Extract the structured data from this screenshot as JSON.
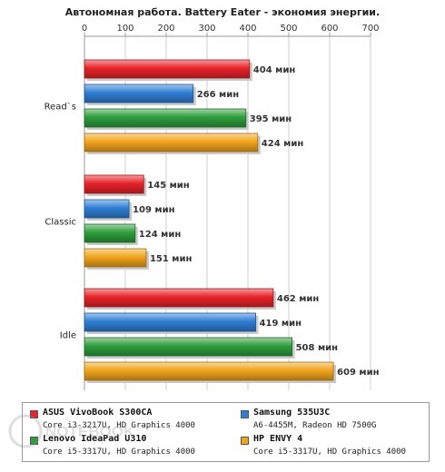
{
  "chart_data": {
    "type": "bar",
    "orientation": "horizontal",
    "title": "Автономная работа. Battery Eater - экономия энергии.",
    "xlim": [
      0,
      700
    ],
    "ticks": [
      0,
      100,
      200,
      300,
      400,
      500,
      600,
      700
    ],
    "tick_labels": [
      "0",
      "100",
      "200",
      "300",
      "400",
      "500",
      "600",
      "700"
    ],
    "xaxis_position": "top",
    "grid": true,
    "categories": [
      "Read`s",
      "Classic",
      "Idle"
    ],
    "unit_suffix": "мин",
    "series": [
      {
        "name": "ASUS VivoBook S300CA",
        "description": "Core i3-3217U, HD Graphics 4000",
        "color": "#e8242a",
        "values": [
          404,
          145,
          462
        ],
        "value_labels": [
          "404 мин",
          "145 мин",
          "462 мин"
        ]
      },
      {
        "name": "Samsung 535U3C",
        "description": "A6-4455M, Radeon HD 7500G",
        "color": "#2f7fd6",
        "values": [
          266,
          109,
          419
        ],
        "value_labels": [
          "266 мин",
          "109 мин",
          "419 мин"
        ]
      },
      {
        "name": "Lenovo IdeaPad U310",
        "description": "Core i5-3317U, HD Graphics 4000",
        "color": "#2e9e3c",
        "values": [
          395,
          124,
          508
        ],
        "value_labels": [
          "395 мин",
          "124 мин",
          "508 мин"
        ]
      },
      {
        "name": "HP ENVY 4",
        "description": "Core i5-3317U, HD Graphics 4000",
        "color": "#f2a51c",
        "values": [
          424,
          151,
          609
        ],
        "value_labels": [
          "424 мин",
          "151 мин",
          "609 мин"
        ]
      }
    ],
    "legend": "bottom"
  },
  "watermark": {
    "text": "NOTEBOOK"
  }
}
